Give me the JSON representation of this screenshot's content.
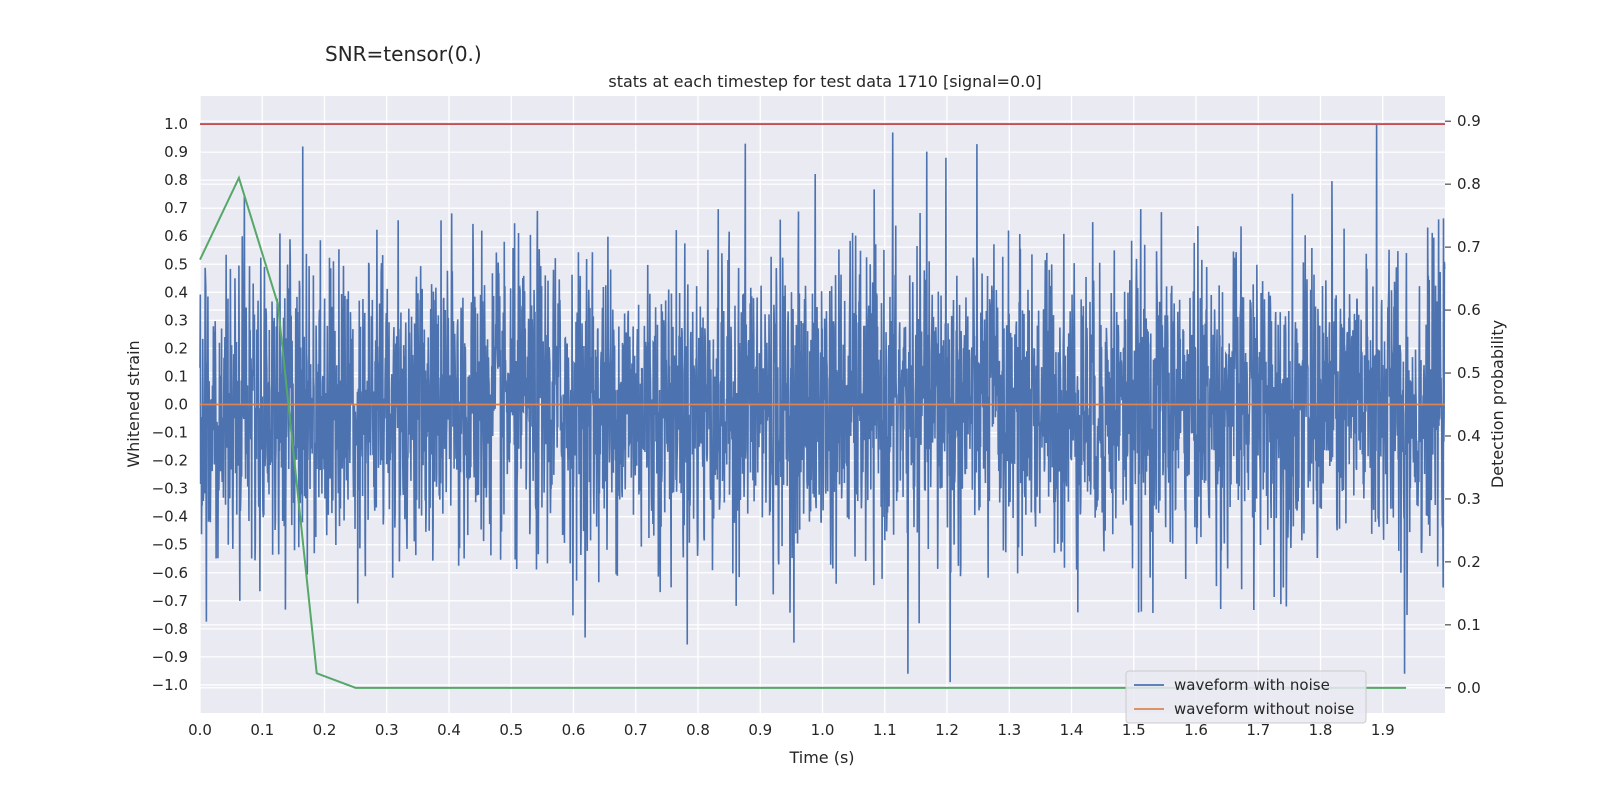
{
  "suptitle": "SNR=tensor(0.)",
  "chart_data": {
    "type": "line",
    "title": "stats at each timestep for test data 1710 [signal=0.0]",
    "xlabel": "Time (s)",
    "ylabel": "Whitened strain",
    "y2label": "Detection probability",
    "xlim": [
      0.0,
      2.0
    ],
    "ylim": [
      -1.1,
      1.1
    ],
    "y2lim": [
      -0.04,
      0.94
    ],
    "x_ticks": [
      "0.0",
      "0.1",
      "0.2",
      "0.3",
      "0.4",
      "0.5",
      "0.6",
      "0.7",
      "0.8",
      "0.9",
      "1.0",
      "1.1",
      "1.2",
      "1.3",
      "1.4",
      "1.5",
      "1.6",
      "1.7",
      "1.8",
      "1.9"
    ],
    "y_ticks": [
      "1.0",
      "0.9",
      "0.8",
      "0.7",
      "0.6",
      "0.5",
      "0.4",
      "0.3",
      "0.2",
      "0.1",
      "0.0",
      "−0.1",
      "−0.2",
      "−0.3",
      "−0.4",
      "−0.5",
      "−0.6",
      "−0.7",
      "−0.8",
      "−0.9",
      "−1.0"
    ],
    "y2_ticks": [
      "0.9",
      "0.8",
      "0.7",
      "0.6",
      "0.5",
      "0.4",
      "0.3",
      "0.2",
      "0.1",
      "0.0"
    ],
    "grid": true,
    "legend_position": "lower-right",
    "series": [
      {
        "name": "waveform with noise",
        "color": "#4c72b0",
        "axis": "left",
        "sample_rate": 2048,
        "note_values": "noise-like whitened strain, normalized to max 1.0 near t=1.89 s",
        "key_points": [
          [
            0.064,
            -0.7
          ],
          [
            0.165,
            0.92
          ],
          [
            0.876,
            0.93
          ],
          [
            1.113,
            0.97
          ],
          [
            1.137,
            -0.96
          ],
          [
            1.198,
            0.88
          ],
          [
            1.205,
            -0.99
          ],
          [
            1.89,
            1.0
          ],
          [
            1.935,
            -0.96
          ]
        ]
      },
      {
        "name": "waveform without noise",
        "color": "#dd8452",
        "axis": "left",
        "x": [
          0.0,
          2.0
        ],
        "y": [
          0.0,
          0.0
        ]
      },
      {
        "name": "",
        "color": "#55a868",
        "axis": "right",
        "x": [
          0.0,
          0.0625,
          0.125,
          0.1875,
          0.25,
          0.5,
          1.0,
          1.5,
          1.9375
        ],
        "y": [
          0.68,
          0.81,
          0.61,
          0.023,
          0.0,
          0.0,
          0.0,
          0.0,
          0.0
        ]
      },
      {
        "name": "",
        "color": "#c44e52",
        "axis": "left",
        "type": "hline",
        "y": 1.0
      }
    ]
  }
}
